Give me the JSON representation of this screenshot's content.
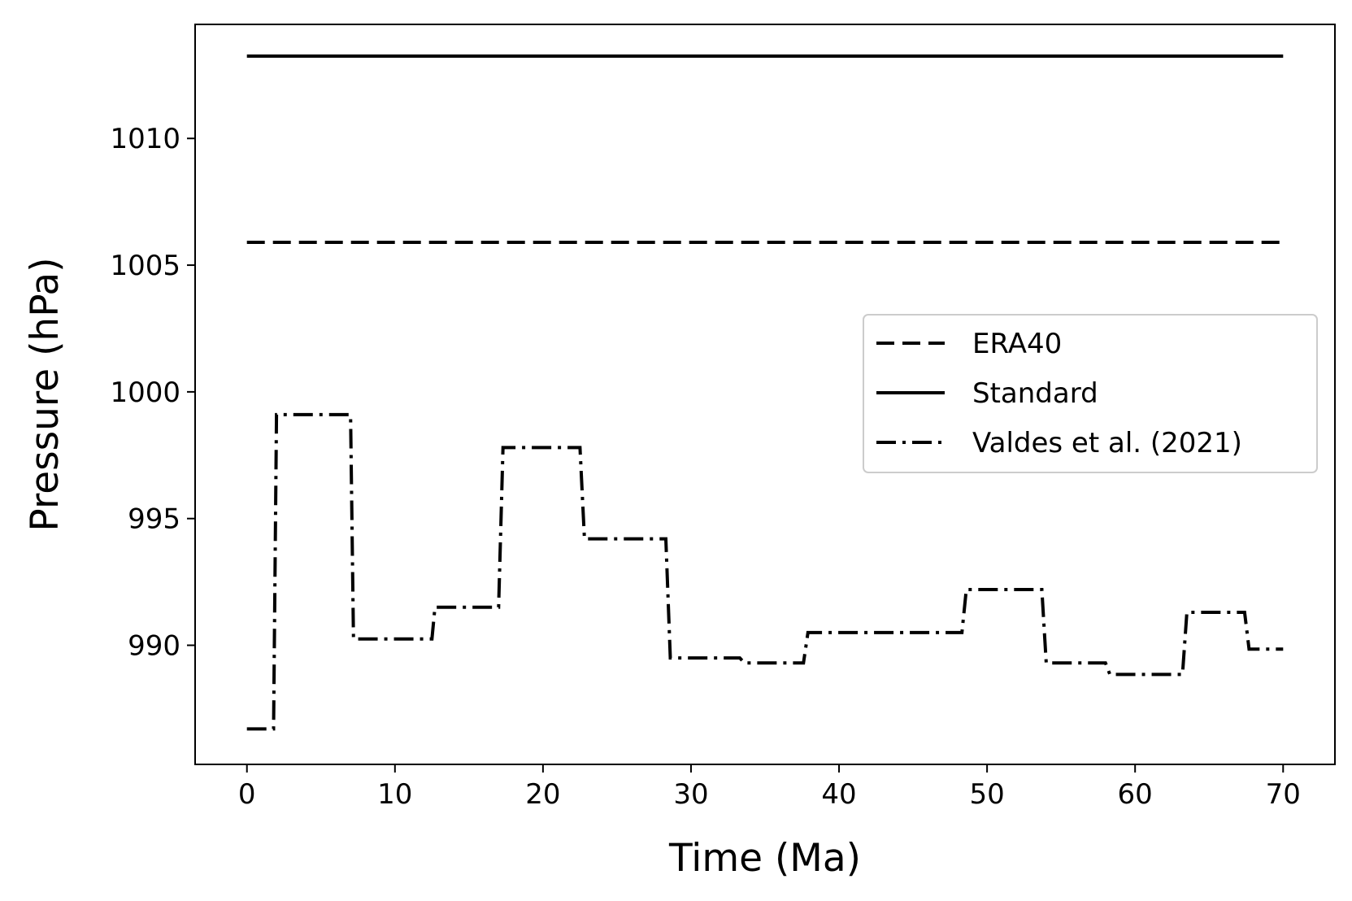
{
  "chart_data": {
    "type": "line",
    "xlabel": "Time (Ma)",
    "ylabel": "Pressure (hPa)",
    "xlim": [
      -3.5,
      73.5
    ],
    "ylim": [
      985.3,
      1014.5
    ],
    "xticks": [
      0,
      10,
      20,
      30,
      40,
      50,
      60,
      70
    ],
    "yticks": [
      990,
      995,
      1000,
      1005,
      1010
    ],
    "grid": false,
    "legend_position": "center-right",
    "series": [
      {
        "name": "ERA40",
        "style": "dashed",
        "color": "#000000",
        "x": [
          0,
          70
        ],
        "y": [
          1005.9,
          1005.9
        ]
      },
      {
        "name": "Standard",
        "style": "solid",
        "color": "#000000",
        "x": [
          0,
          70
        ],
        "y": [
          1013.25,
          1013.25
        ]
      },
      {
        "name": "Valdes et al. (2021)",
        "style": "dashdot",
        "color": "#000000",
        "x": [
          0,
          1.8,
          2.0,
          7.0,
          7.2,
          12.5,
          12.7,
          17.0,
          17.3,
          22.5,
          22.8,
          28.3,
          28.6,
          33.3,
          33.6,
          37.6,
          37.9,
          48.3,
          48.6,
          53.7,
          54.0,
          58.0,
          58.3,
          63.2,
          63.5,
          67.4,
          67.7,
          70
        ],
        "y": [
          986.7,
          986.7,
          999.1,
          999.1,
          990.25,
          990.25,
          991.5,
          991.5,
          997.8,
          997.8,
          994.2,
          994.2,
          989.5,
          989.5,
          989.3,
          989.3,
          990.5,
          990.5,
          992.2,
          992.2,
          989.3,
          989.3,
          988.85,
          988.85,
          991.3,
          991.3,
          989.85,
          989.85
        ]
      }
    ]
  }
}
